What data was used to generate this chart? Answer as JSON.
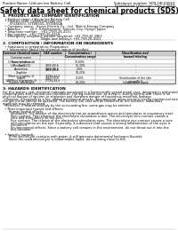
{
  "title": "Safety data sheet for chemical products (SDS)",
  "header_left": "Product Name: Lithium Ion Battery Cell",
  "header_right_line1": "Substance number: SDS-LIB-00010",
  "header_right_line2": "Established / Revision: Dec.1.2010",
  "section1_title": "1. PRODUCT AND COMPANY IDENTIFICATION",
  "section1_lines": [
    "  • Product name: Lithium Ion Battery Cell",
    "  • Product code: Cylindrical-type cell",
    "       SY18650U, SY18650G, SY18650A",
    "  • Company name:   Sanyo Electric Co., Ltd.  Mobile Energy Company",
    "  • Address:         20-1  Kamikamachi, Sumoto-City, Hyogo, Japan",
    "  • Telephone number:   +81-(799)-26-4111",
    "  • Fax number:  +81-(799)-26-4129",
    "  • Emergency telephone number (daytime): +81-799-26-3962",
    "                                      (Night and holiday): +81-799-26-4101"
  ],
  "section2_title": "2. COMPOSITION / INFORMATION ON INGREDIENTS",
  "section2_sub": "  • Substance or preparation: Preparation",
  "section2_sub2": "    • Information about the chemical nature of product",
  "table_headers": [
    "Common chemical name",
    "CAS number",
    "Concentration /\nConcentration range",
    "Classification and\nhazard labeling"
  ],
  "section3_title": "3. HAZARDS IDENTIFICATION",
  "section3_lines": [
    "For this battery cell, chemical materials are stored in a hermetically sealed metal case, designed to withstand",
    "temperatures and (normal-use-conditions). During normal use, as a result, during normal-use, there is no",
    "physical danger of ignition or explosion and therefore danger of hazardous materials leakage.",
    "  However, if exposed to a fire, added mechanical shocks, decomposed, when external strong mechanical stress is applied,",
    "the gas inside cannot be operated. The battery cell case will be breached at the extreme, hazardous",
    "materials may be released.",
    "  Moreover, if heated strongly by the surrounding fire, some gas may be emitted."
  ],
  "section3_lines2": [
    "  • Most important hazard and effects:",
    "      Human health effects:",
    "        Inhalation: The release of the electrolyte has an anaesthesia action and stimulates in respiratory tract.",
    "        Skin contact: The release of the electrolyte stimulates a skin. The electrolyte skin contact causes a",
    "        sore and stimulation on the skin.",
    "        Eye contact: The release of the electrolyte stimulates eyes. The electrolyte eye contact causes a sore",
    "        and stimulation on the eye. Especially, a substance that causes a strong inflammation of the eyes is",
    "        contained.",
    "        Environmental effects: Since a battery cell remains in the environment, do not throw out it into the",
    "        environment.",
    "",
    "  • Specific hazards:",
    "      If the electrolyte contacts with water, it will generate detrimental hydrogen fluoride.",
    "      Since the used electrolyte is inflammable liquid, do not bring close to fire."
  ],
  "bg_color": "#ffffff",
  "text_color": "#000000",
  "header_fs": 2.8,
  "title_fs": 5.5,
  "section_fs": 3.2,
  "body_fs": 2.5,
  "table_fs": 2.2
}
